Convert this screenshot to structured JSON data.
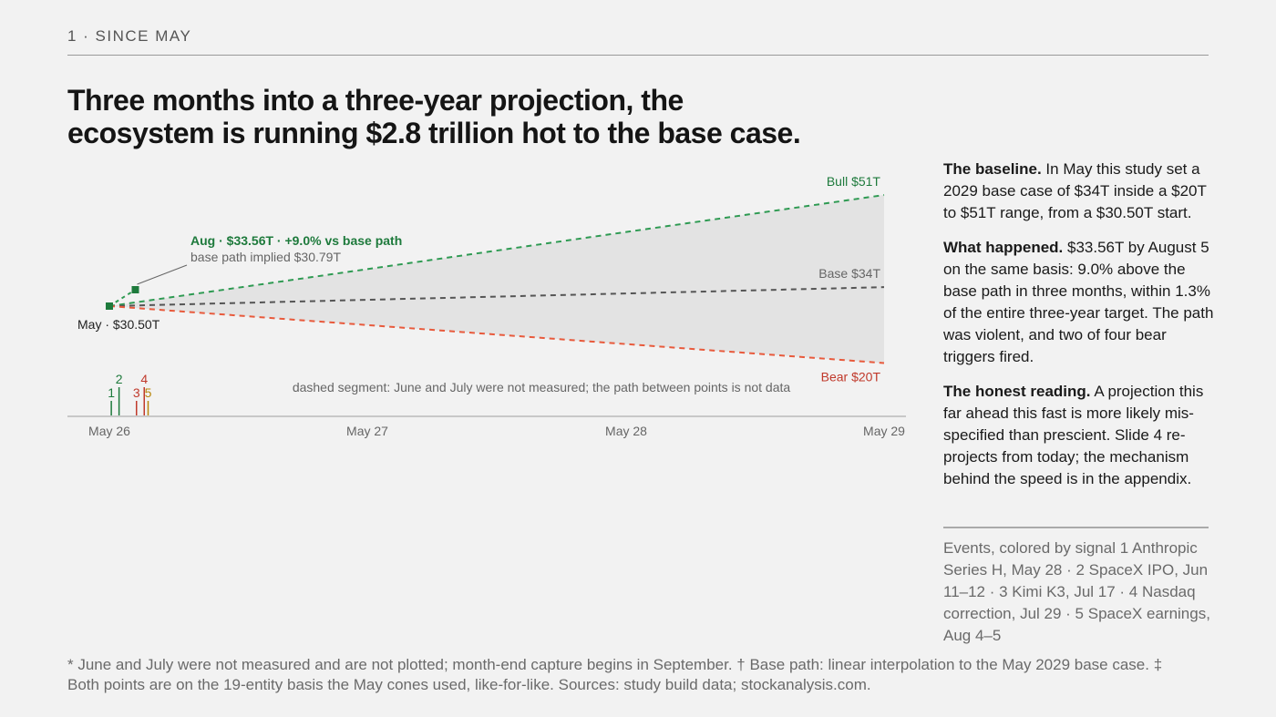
{
  "section_label": "1 · SINCE MAY",
  "headline": {
    "line1": "Three months into a three-year projection, the",
    "line2": "ecosystem is running $2.8 trillion hot to the base case."
  },
  "colors": {
    "bull": "#2e9a52",
    "bull_dark": "#1e7a3c",
    "base": "#555555",
    "bear": "#e85a3c",
    "bear_dark": "#c0392b",
    "event_amber": "#b8860b",
    "cone_fill": "#e3e3e3"
  },
  "chart_data": {
    "type": "line",
    "x_ticks": [
      "May 26",
      "May 27",
      "May 28",
      "May 29"
    ],
    "series": [
      {
        "name": "Bull $51T",
        "x": [
          2025.4,
          2029.4
        ],
        "values": [
          30.5,
          51
        ],
        "style": "dashed",
        "color_key": "bull"
      },
      {
        "name": "Base $34T",
        "x": [
          2025.4,
          2029.4
        ],
        "values": [
          30.5,
          34
        ],
        "style": "dashed",
        "color_key": "base"
      },
      {
        "name": "Bear $20T",
        "x": [
          2025.4,
          2029.4
        ],
        "values": [
          30.5,
          20
        ],
        "style": "dashed",
        "color_key": "bear"
      }
    ],
    "actual_points": [
      {
        "label": "May · $30.50T",
        "x": 2025.4,
        "value": 30.5
      },
      {
        "label": "Aug · $33.56T · +9.0% vs base path",
        "x": 2025.6,
        "value": 33.56,
        "sublabel": "base path implied $30.79T"
      }
    ],
    "events": [
      {
        "id": "1",
        "x": 2025.41,
        "color_key": "bull_dark",
        "stem": "short"
      },
      {
        "id": "2",
        "x": 2025.45,
        "color_key": "bull_dark",
        "stem": "tall"
      },
      {
        "id": "3",
        "x": 2025.54,
        "color_key": "bear_dark",
        "stem": "short"
      },
      {
        "id": "4",
        "x": 2025.58,
        "color_key": "bear_dark",
        "stem": "tall"
      },
      {
        "id": "5",
        "x": 2025.6,
        "color_key": "event_amber",
        "stem": "short"
      }
    ],
    "annotation": "dashed segment: June and July were not measured; the path between points is not data",
    "grid": false
  },
  "sidebar": {
    "p1_bold": "The baseline.",
    "p1_text": " In May this study set a 2029 base case of $34T inside a $20T to $51T range, from a $30.50T start.",
    "p2_bold": "What happened.",
    "p2_text": " $33.56T by August 5 on the same basis: 9.0% above the base path in three months, within 1.3% of the entire three-year target. The path was violent, and two of four bear triggers fired.",
    "p3_bold": "The honest reading.",
    "p3_text": " A projection this far ahead this fast is more likely mis-specified than prescient. Slide 4 re-projects from today; the mechanism behind the speed is in the appendix."
  },
  "events_legend": "Events, colored by signal  1 Anthropic Series H, May 28 · 2 SpaceX IPO, Jun 11–12 · 3 Kimi K3, Jul 17 · 4 Nasdaq correction, Jul 29 · 5 SpaceX earnings, Aug 4–5",
  "footnote": "* June and July were not measured and are not plotted; month-end capture begins in September.  † Base path: linear interpolation to the May 2029 base case.  ‡ Both points are on the 19-entity basis the May cones used, like-for-like. Sources: study build data; stockanalysis.com."
}
